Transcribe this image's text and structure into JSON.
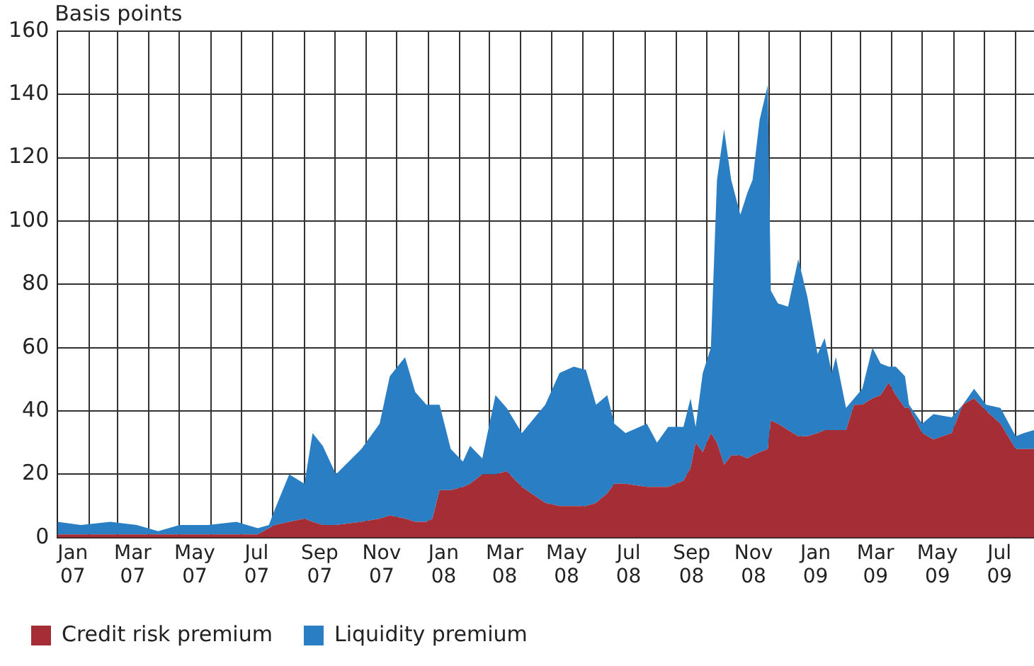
{
  "chart_data": {
    "type": "area",
    "stacked": true,
    "ylabel": "Basis points",
    "grid": true,
    "legend": "bottom left",
    "xlim": [
      "2007-01-01",
      "2009-08-19"
    ],
    "ylim": [
      0,
      160
    ],
    "yticks": [
      0,
      20,
      40,
      60,
      80,
      100,
      120,
      140,
      160
    ],
    "xticks": [
      {
        "value": "2007-02-01",
        "label": null
      },
      {
        "value": "2007-03-01",
        "label": null
      },
      {
        "value": "2007-04-01",
        "label": null
      },
      {
        "value": "2007-05-01",
        "label": null
      },
      {
        "value": "2007-06-01",
        "label": null
      },
      {
        "value": "2007-07-01",
        "label": null
      },
      {
        "value": "2007-08-01",
        "label": null
      },
      {
        "value": "2007-09-01",
        "label": null
      },
      {
        "value": "2007-10-01",
        "label": null
      },
      {
        "value": "2007-11-01",
        "label": null
      },
      {
        "value": "2007-12-01",
        "label": null
      },
      {
        "value": "2008-01-01",
        "label": null
      },
      {
        "value": "2008-02-01",
        "label": null
      },
      {
        "value": "2008-03-01",
        "label": null
      },
      {
        "value": "2008-04-01",
        "label": null
      },
      {
        "value": "2008-05-01",
        "label": null
      },
      {
        "value": "2008-06-01",
        "label": null
      },
      {
        "value": "2008-07-01",
        "label": null
      },
      {
        "value": "2008-08-01",
        "label": null
      },
      {
        "value": "2008-09-01",
        "label": null
      },
      {
        "value": "2008-10-01",
        "label": null
      },
      {
        "value": "2008-11-01",
        "label": null
      },
      {
        "value": "2008-12-01",
        "label": null
      },
      {
        "value": "2009-01-01",
        "label": null
      },
      {
        "value": "2009-02-01",
        "label": null
      },
      {
        "value": "2009-03-01",
        "label": null
      },
      {
        "value": "2009-04-01",
        "label": null
      },
      {
        "value": "2009-05-01",
        "label": null
      },
      {
        "value": "2009-06-01",
        "label": null
      },
      {
        "value": "2009-07-01",
        "label": null
      },
      {
        "value": "2009-08-01",
        "label": null
      },
      {
        "value": "2007-01-16",
        "label": "Jan 07"
      },
      {
        "value": "2007-03-16",
        "label": "Mar 07"
      },
      {
        "value": "2007-05-16",
        "label": "May 07"
      },
      {
        "value": "2007-07-16",
        "label": "Jul 07"
      },
      {
        "value": "2007-09-16",
        "label": "Sep 07"
      },
      {
        "value": "2007-11-16",
        "label": "Nov 07"
      },
      {
        "value": "2008-01-16",
        "label": "Jan 08"
      },
      {
        "value": "2008-03-16",
        "label": "Mar 08"
      },
      {
        "value": "2008-05-16",
        "label": "May 08"
      },
      {
        "value": "2008-07-16",
        "label": "Jul 08"
      },
      {
        "value": "2008-09-16",
        "label": "Sep 08"
      },
      {
        "value": "2008-11-16",
        "label": "Nov 08"
      },
      {
        "value": "2009-01-16",
        "label": "Jan 09"
      },
      {
        "value": "2009-03-16",
        "label": "Mar 09"
      },
      {
        "value": "2009-05-16",
        "label": "May 09"
      },
      {
        "value": "2009-07-16",
        "label": "Jul 09"
      }
    ],
    "x": [
      "2007-01-01",
      "2007-01-24",
      "2007-02-22",
      "2007-03-20",
      "2007-04-10",
      "2007-05-01",
      "2007-05-29",
      "2007-06-26",
      "2007-07-17",
      "2007-07-28",
      "2007-08-03",
      "2007-08-17",
      "2007-09-01",
      "2007-09-09",
      "2007-09-19",
      "2007-10-02",
      "2007-10-27",
      "2007-11-14",
      "2007-11-24",
      "2007-12-09",
      "2007-12-19",
      "2007-12-30",
      "2008-01-05",
      "2008-01-12",
      "2008-01-23",
      "2008-02-04",
      "2008-02-11",
      "2008-02-23",
      "2008-03-07",
      "2008-03-18",
      "2008-04-02",
      "2008-04-25",
      "2008-05-09",
      "2008-05-23",
      "2008-06-04",
      "2008-06-14",
      "2008-06-25",
      "2008-07-02",
      "2008-07-13",
      "2008-08-03",
      "2008-08-13",
      "2008-08-24",
      "2008-09-08",
      "2008-09-15",
      "2008-09-20",
      "2008-09-27",
      "2008-10-05",
      "2008-10-11",
      "2008-10-18",
      "2008-10-25",
      "2008-11-03",
      "2008-11-10",
      "2008-11-15",
      "2008-11-22",
      "2008-11-30",
      "2008-12-03",
      "2008-12-10",
      "2008-12-20",
      "2008-12-30",
      "2009-01-08",
      "2009-01-18",
      "2009-01-25",
      "2009-02-01",
      "2009-02-05",
      "2009-02-15",
      "2009-02-23",
      "2009-03-03",
      "2009-03-13",
      "2009-03-21",
      "2009-03-29",
      "2009-04-05",
      "2009-04-14",
      "2009-04-18",
      "2009-05-01",
      "2009-05-12",
      "2009-05-30",
      "2009-06-10",
      "2009-06-21",
      "2009-07-03",
      "2009-07-17",
      "2009-08-01",
      "2009-08-09",
      "2009-08-19"
    ],
    "series": [
      {
        "name": "Credit risk premium",
        "color": "#a52d36",
        "values": [
          1,
          1,
          1,
          1,
          1,
          1,
          1,
          1,
          1,
          3,
          4,
          5,
          6,
          5,
          4,
          4,
          5,
          6,
          7,
          6,
          5,
          5,
          6,
          15,
          15,
          16,
          17,
          20,
          20,
          21,
          16,
          11,
          10,
          10,
          10,
          11,
          14,
          17,
          17,
          16,
          16,
          16,
          18,
          22,
          30,
          27,
          33,
          30,
          23,
          26,
          26,
          25,
          26,
          27,
          28,
          37,
          36,
          34,
          32,
          32,
          33,
          34,
          34,
          34,
          34,
          42,
          42,
          44,
          45,
          49,
          45,
          41,
          41,
          33,
          31,
          33,
          42,
          44,
          40,
          36,
          28,
          28,
          28
        ]
      },
      {
        "name": "Liquidity premium",
        "color": "#2a7ec3",
        "values": [
          4,
          3,
          4,
          3,
          1,
          3,
          3,
          4,
          2,
          1,
          5,
          15,
          11,
          28,
          25,
          16,
          23,
          30,
          44,
          51,
          41,
          37,
          36,
          27,
          13,
          8,
          12,
          5,
          25,
          20,
          17,
          31,
          42,
          44,
          43,
          31,
          31,
          19,
          16,
          20,
          14,
          19,
          17,
          22,
          5,
          25,
          27,
          83,
          106,
          87,
          76,
          84,
          87,
          105,
          115,
          41,
          38,
          39,
          56,
          44,
          25,
          29,
          18,
          23,
          7,
          2,
          5,
          16,
          10,
          5,
          9,
          10,
          1,
          3,
          8,
          5,
          0,
          3,
          2,
          5,
          4,
          5,
          6
        ]
      }
    ]
  }
}
